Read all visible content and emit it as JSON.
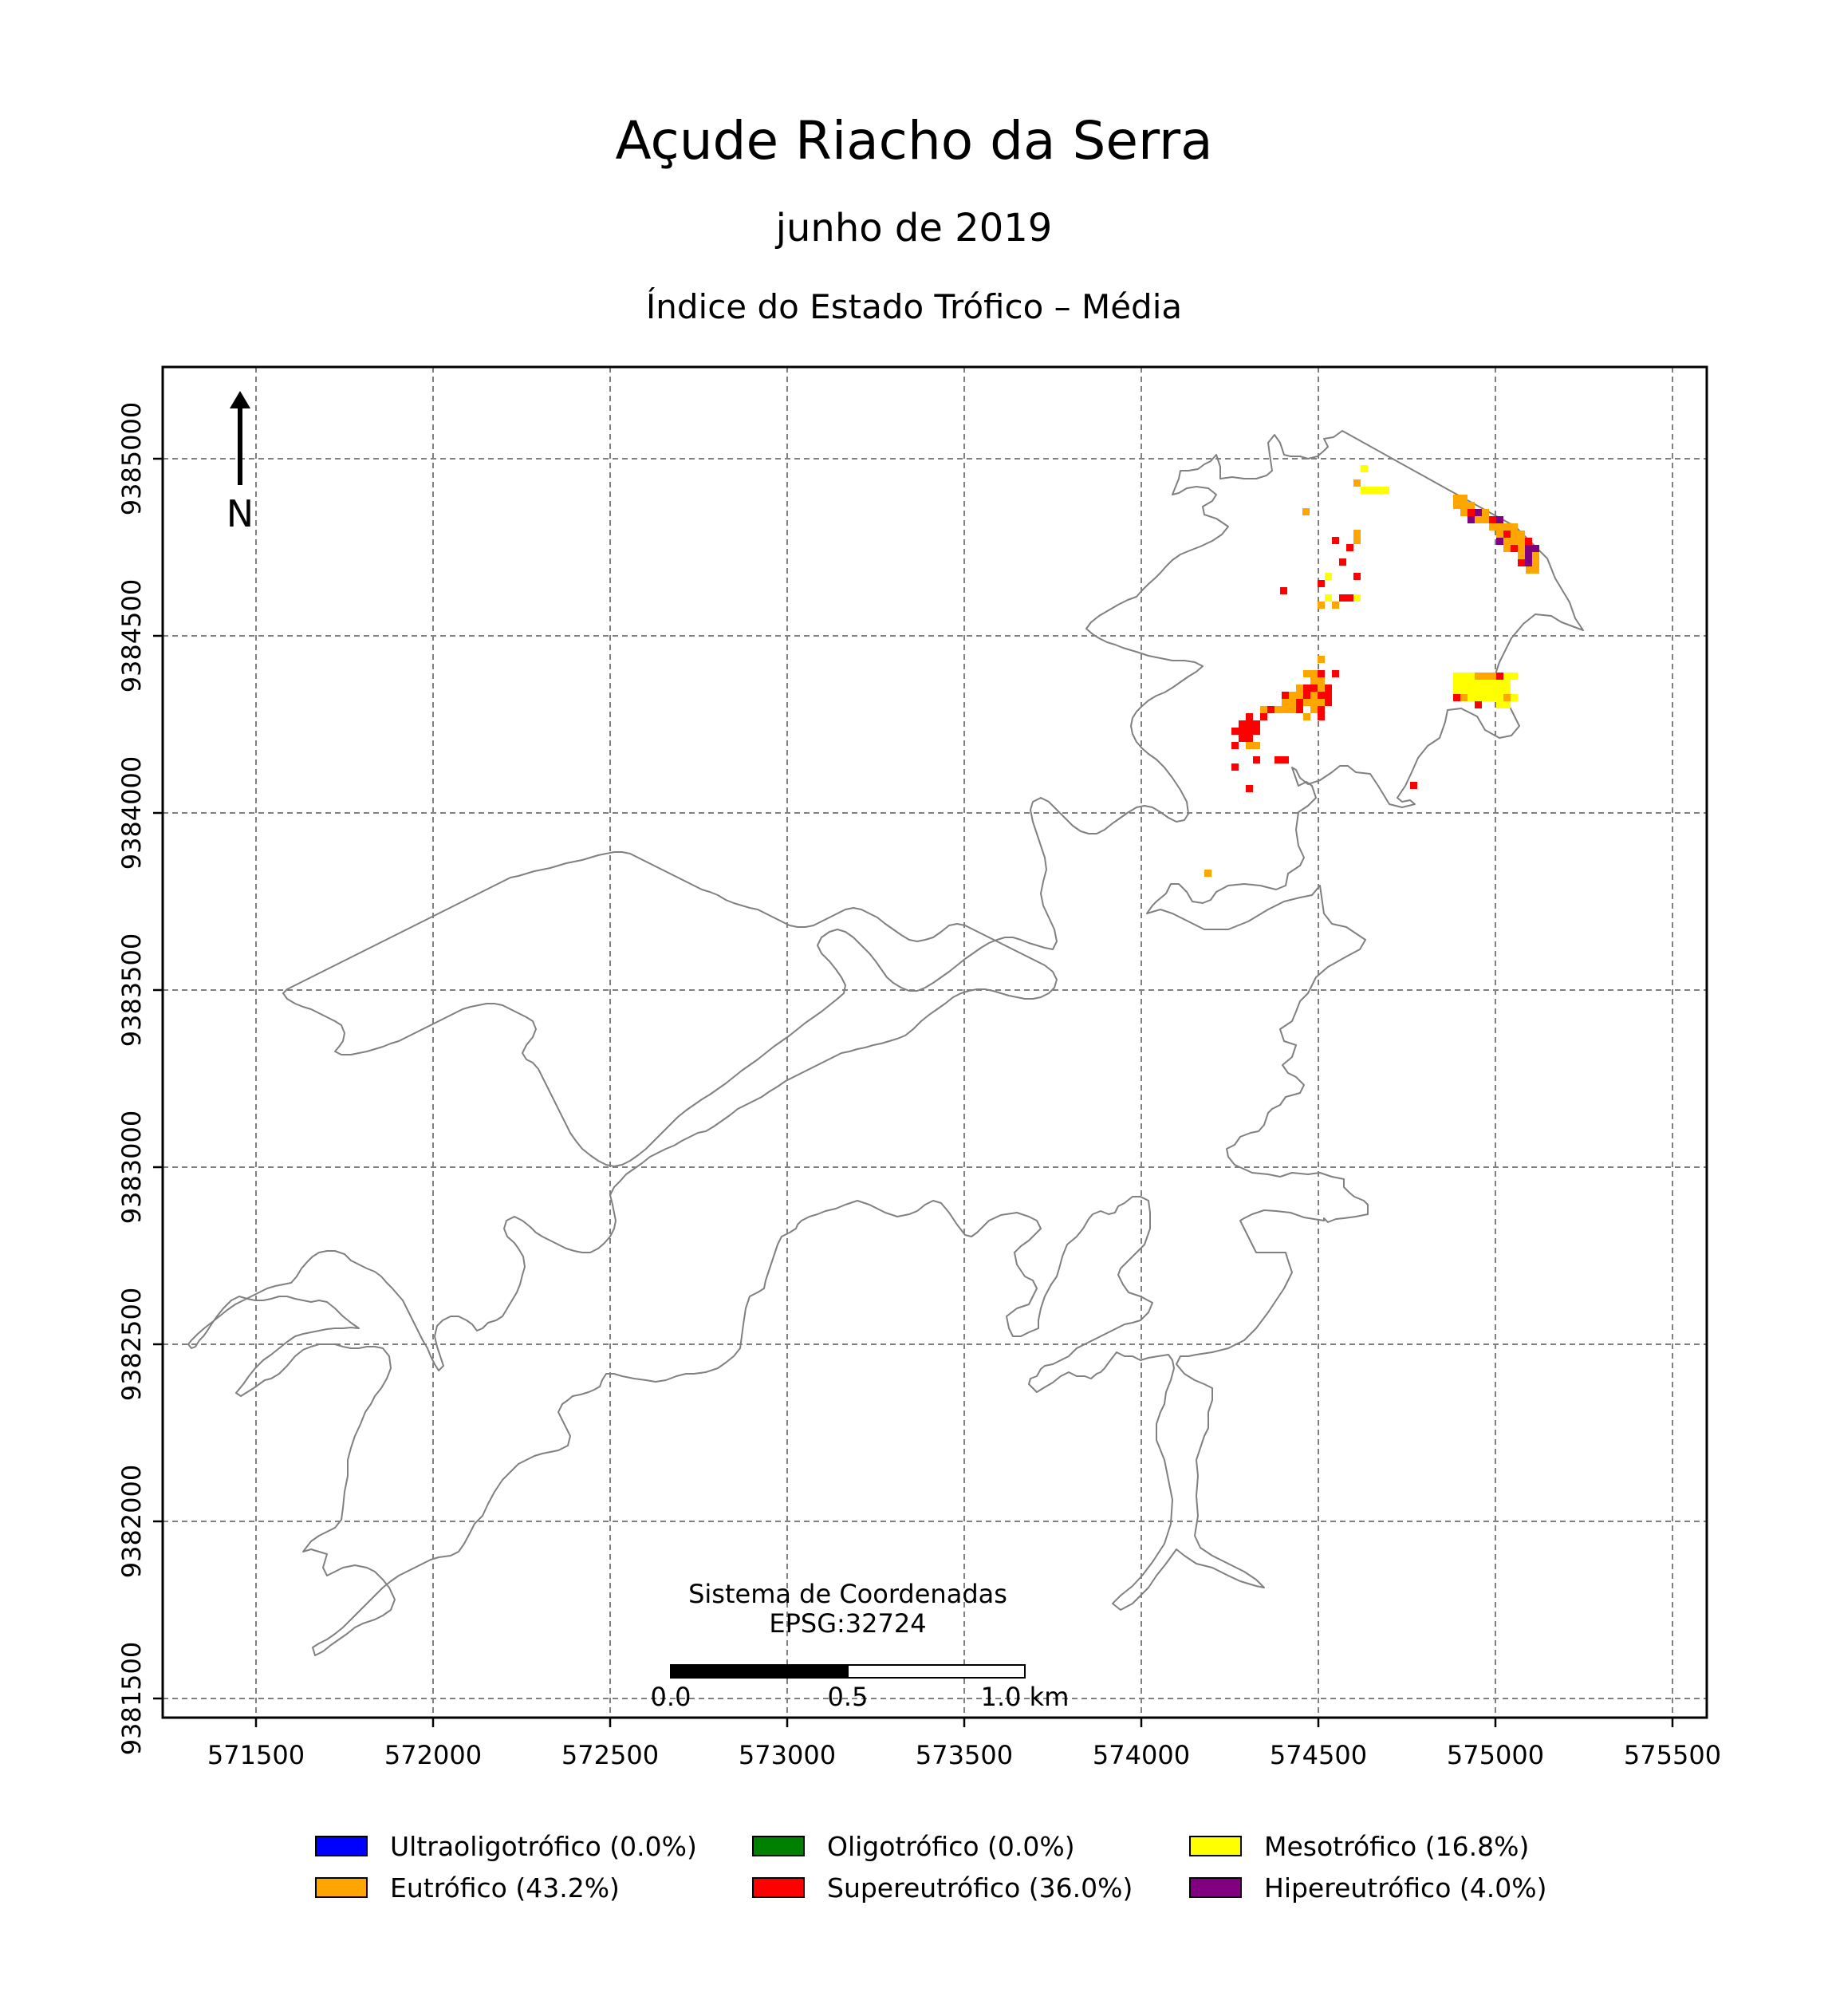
{
  "title": "Açude Riacho da Serra",
  "date_label": "junho de 2019",
  "subtitle": "Índice do Estado Trófico – Média",
  "north_label": "N",
  "crs": {
    "line1": "Sistema de Coordenadas",
    "line2": "EPSG:32724"
  },
  "scale_bar": {
    "labels": [
      "0.0",
      "0.5",
      "1.0 km"
    ]
  },
  "axes": {
    "x_ticks": [
      "571500",
      "572000",
      "572500",
      "573000",
      "573500",
      "574000",
      "574500",
      "575000",
      "575500"
    ],
    "y_ticks": [
      "9385000",
      "9384500",
      "9384000",
      "9383500",
      "9383000",
      "9382500",
      "9382000",
      "9381500"
    ],
    "grid": true
  },
  "legend": [
    {
      "label": "Ultraoligotrófico (0.0%)",
      "color": "#0000ff"
    },
    {
      "label": "Oligotrófico (0.0%)",
      "color": "#008000"
    },
    {
      "label": "Mesotrófico (16.8%)",
      "color": "#ffff00"
    },
    {
      "label": "Eutrófico (43.2%)",
      "color": "#ffa500"
    },
    {
      "label": "Supereutrófico (36.0%)",
      "color": "#ff0000"
    },
    {
      "label": "Hipereutrófico (4.0%)",
      "color": "#800080"
    }
  ],
  "colors": {
    "outline": "#808080",
    "grid": "#808080"
  }
}
